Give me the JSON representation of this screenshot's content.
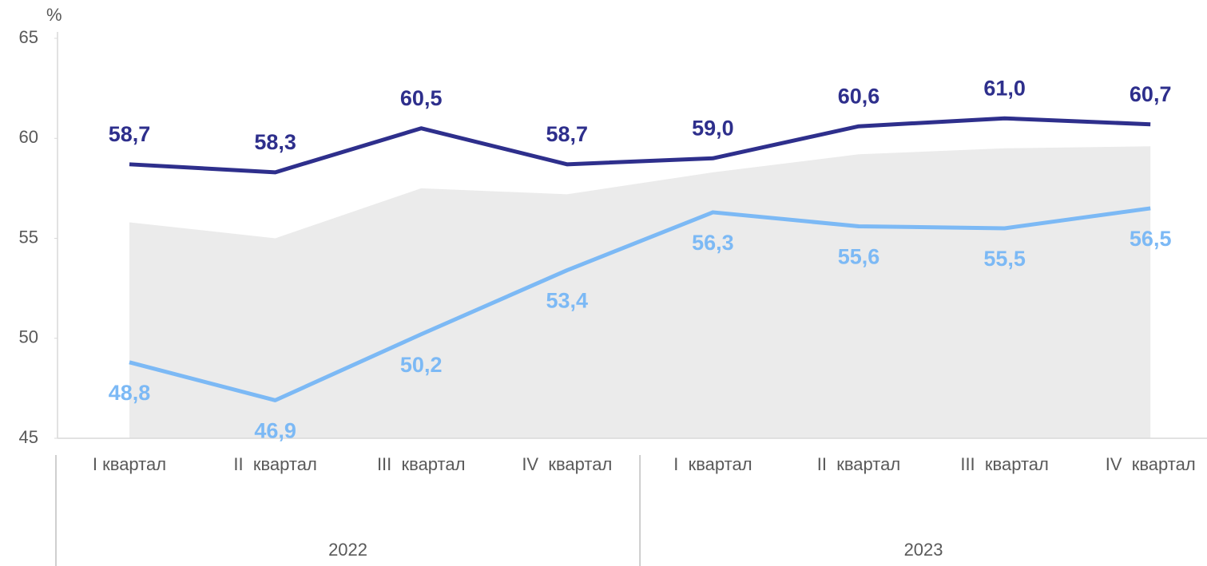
{
  "chart_data": {
    "type": "line",
    "unit": "%",
    "categories": [
      "I квартал",
      "II  квартал",
      "III  квартал",
      "IV  квартал",
      "I  квартал",
      "II  квартал",
      "III  квартал",
      "IV  квартал"
    ],
    "groups": [
      "2022",
      "2023"
    ],
    "ylim": [
      45,
      65
    ],
    "yticks": [
      45,
      50,
      55,
      60,
      65
    ],
    "area": {
      "color": "#ebebeb",
      "values": [
        55.8,
        55.0,
        57.5,
        57.2,
        58.3,
        59.2,
        59.5,
        59.6
      ]
    },
    "series": [
      {
        "color": "#2e2f8c",
        "label_pos": "above",
        "values": [
          58.7,
          58.3,
          60.5,
          58.7,
          59.0,
          60.6,
          61.0,
          60.7
        ],
        "value_labels": [
          "58,7",
          "58,3",
          "60,5",
          "58,7",
          "59,0",
          "60,6",
          "61,0",
          "60,7"
        ]
      },
      {
        "color": "#7cb9f5",
        "label_pos": "below",
        "values": [
          48.8,
          46.9,
          50.2,
          53.4,
          56.3,
          55.6,
          55.5,
          56.5
        ],
        "value_labels": [
          "48,8",
          "46,9",
          "50,2",
          "53,4",
          "56,3",
          "55,6",
          "55,5",
          "56,5"
        ]
      }
    ]
  }
}
